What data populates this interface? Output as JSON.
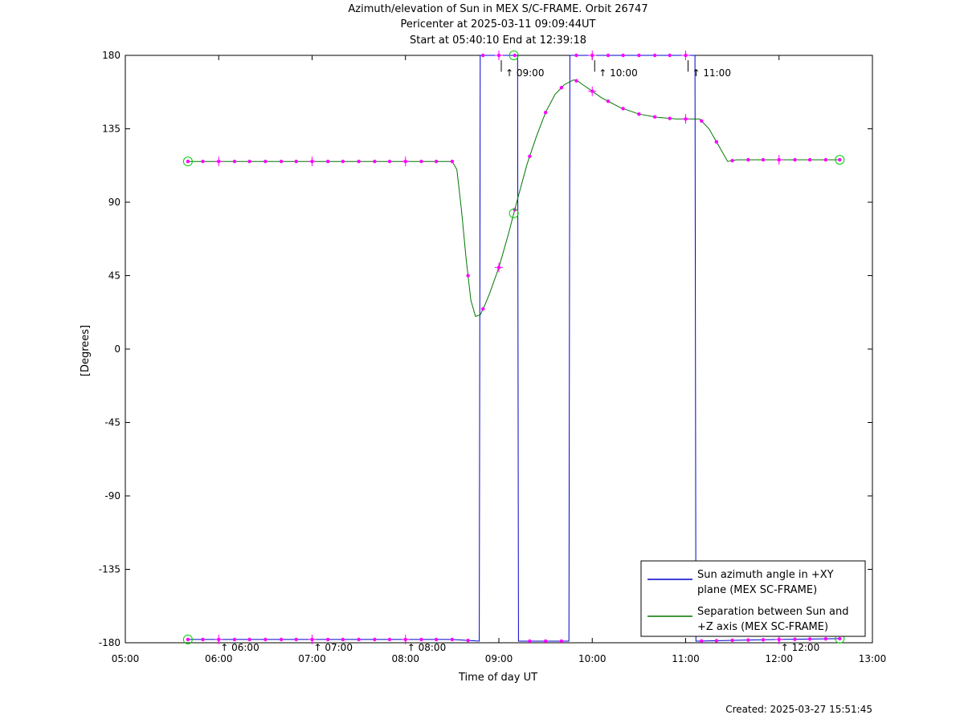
{
  "chart_data": {
    "type": "line",
    "title": [
      "Azimuth/elevation of Sun in MEX S/C-FRAME.  Orbit 26747",
      "Pericenter at 2025-03-11 09:09:44UT",
      "Start at 05:40:10 End at 12:39:18"
    ],
    "xlabel": "Time of day UT",
    "ylabel": "[Degrees]",
    "xlim": [
      5.0,
      13.0
    ],
    "ylim": [
      -180,
      180
    ],
    "x_unit": "hours UT",
    "x_ticks": [
      "05:00",
      "06:00",
      "07:00",
      "08:00",
      "09:00",
      "10:00",
      "11:00",
      "12:00",
      "13:00"
    ],
    "y_ticks": [
      "180",
      "135",
      "90",
      "45",
      "0",
      "-45",
      "-90",
      "-135",
      "-180"
    ],
    "grid": false,
    "legend_position": "bottom-right",
    "series": [
      {
        "name": "Sun azimuth angle in +XY plane (MEX SC-FRAME)",
        "legend_lines": [
          "Sun azimuth angle in +XY",
          "plane (MEX SC-FRAME)"
        ],
        "color": "#0000cc",
        "x": [
          5.67,
          8.0,
          8.5,
          8.79,
          8.8,
          8.83,
          9.0,
          9.2,
          9.21,
          9.24,
          9.5,
          9.75,
          9.76,
          9.78,
          10.0,
          10.5,
          11.1,
          11.11,
          11.13,
          11.5,
          12.0,
          12.65
        ],
        "values": [
          -178,
          -178,
          -178,
          -179,
          180,
          180,
          180,
          180,
          -179,
          -179,
          -179,
          -179,
          180,
          180,
          180,
          180,
          180,
          -179,
          -179,
          -178.5,
          -178,
          -177.5
        ]
      },
      {
        "name": "Separation between Sun and +Z axis (MEX SC-FRAME)",
        "legend_lines": [
          "Separation between Sun and",
          "+Z axis (MEX SC-FRAME)"
        ],
        "color": "#007700",
        "x": [
          5.67,
          6.0,
          7.0,
          8.0,
          8.5,
          8.55,
          8.6,
          8.65,
          8.7,
          8.75,
          8.8,
          8.85,
          8.9,
          9.0,
          9.1,
          9.2,
          9.3,
          9.4,
          9.5,
          9.6,
          9.7,
          9.8,
          9.85,
          9.9,
          10.0,
          10.1,
          10.2,
          10.3,
          10.5,
          10.7,
          10.9,
          11.15,
          11.25,
          11.35,
          11.45,
          11.55,
          11.65,
          12.0,
          12.65
        ],
        "values": [
          115,
          115,
          115,
          115,
          115,
          110,
          85,
          55,
          30,
          20,
          21,
          27,
          34,
          50,
          70,
          92,
          113,
          130,
          145,
          156,
          162,
          165,
          164,
          162,
          158,
          154,
          151,
          148,
          144,
          142,
          141,
          141,
          135,
          125,
          115,
          116,
          116,
          116,
          116
        ]
      }
    ],
    "markers": {
      "color": "#ff00ff",
      "circle_color": "#00cc00",
      "sep_dots_x": [
        5.67,
        5.83,
        6.0,
        6.17,
        6.33,
        6.5,
        6.67,
        6.83,
        7.0,
        7.17,
        7.33,
        7.5,
        7.67,
        7.83,
        8.0,
        8.17,
        8.33,
        8.5,
        8.67,
        8.83,
        9.0,
        9.17,
        9.33,
        9.5,
        9.67,
        9.83,
        10.0,
        10.17,
        10.33,
        10.5,
        10.67,
        10.83,
        11.0,
        11.17,
        11.33,
        11.5,
        11.67,
        11.83,
        12.0,
        12.17,
        12.33,
        12.5,
        12.65
      ],
      "sep_crosses_x": [
        6.0,
        7.0,
        8.0,
        9.0,
        10.0,
        11.0,
        12.0
      ],
      "sep_circles_x": [
        5.67,
        9.16,
        12.65
      ],
      "az_dots_x": [
        5.67,
        5.83,
        6.0,
        6.17,
        6.33,
        6.5,
        6.67,
        6.83,
        7.0,
        7.17,
        7.33,
        7.5,
        7.67,
        7.83,
        8.0,
        8.17,
        8.33,
        8.5,
        8.67,
        8.83,
        9.0,
        9.17,
        9.33,
        9.5,
        9.67,
        9.83,
        10.0,
        10.17,
        10.33,
        10.5,
        10.67,
        10.83,
        11.0,
        11.17,
        11.33,
        11.5,
        11.67,
        11.83,
        12.0,
        12.17,
        12.33,
        12.5,
        12.65
      ],
      "az_crosses_x": [
        6.0,
        7.0,
        8.0,
        9.0,
        10.0,
        11.0,
        12.0
      ],
      "az_circles_x": [
        5.67,
        9.16,
        12.65
      ]
    },
    "hour_labels": [
      {
        "x": 6.0,
        "label": "06:00",
        "pos": "bottom"
      },
      {
        "x": 7.0,
        "label": "07:00",
        "pos": "bottom"
      },
      {
        "x": 8.0,
        "label": "08:00",
        "pos": "bottom"
      },
      {
        "x": 9.0,
        "label": "09:00",
        "pos": "top"
      },
      {
        "x": 10.0,
        "label": "10:00",
        "pos": "top"
      },
      {
        "x": 11.0,
        "label": "11:00",
        "pos": "top"
      },
      {
        "x": 12.0,
        "label": "12:00",
        "pos": "bottom"
      }
    ]
  },
  "footer": {
    "created": "Created: 2025-03-27 15:51:45"
  }
}
